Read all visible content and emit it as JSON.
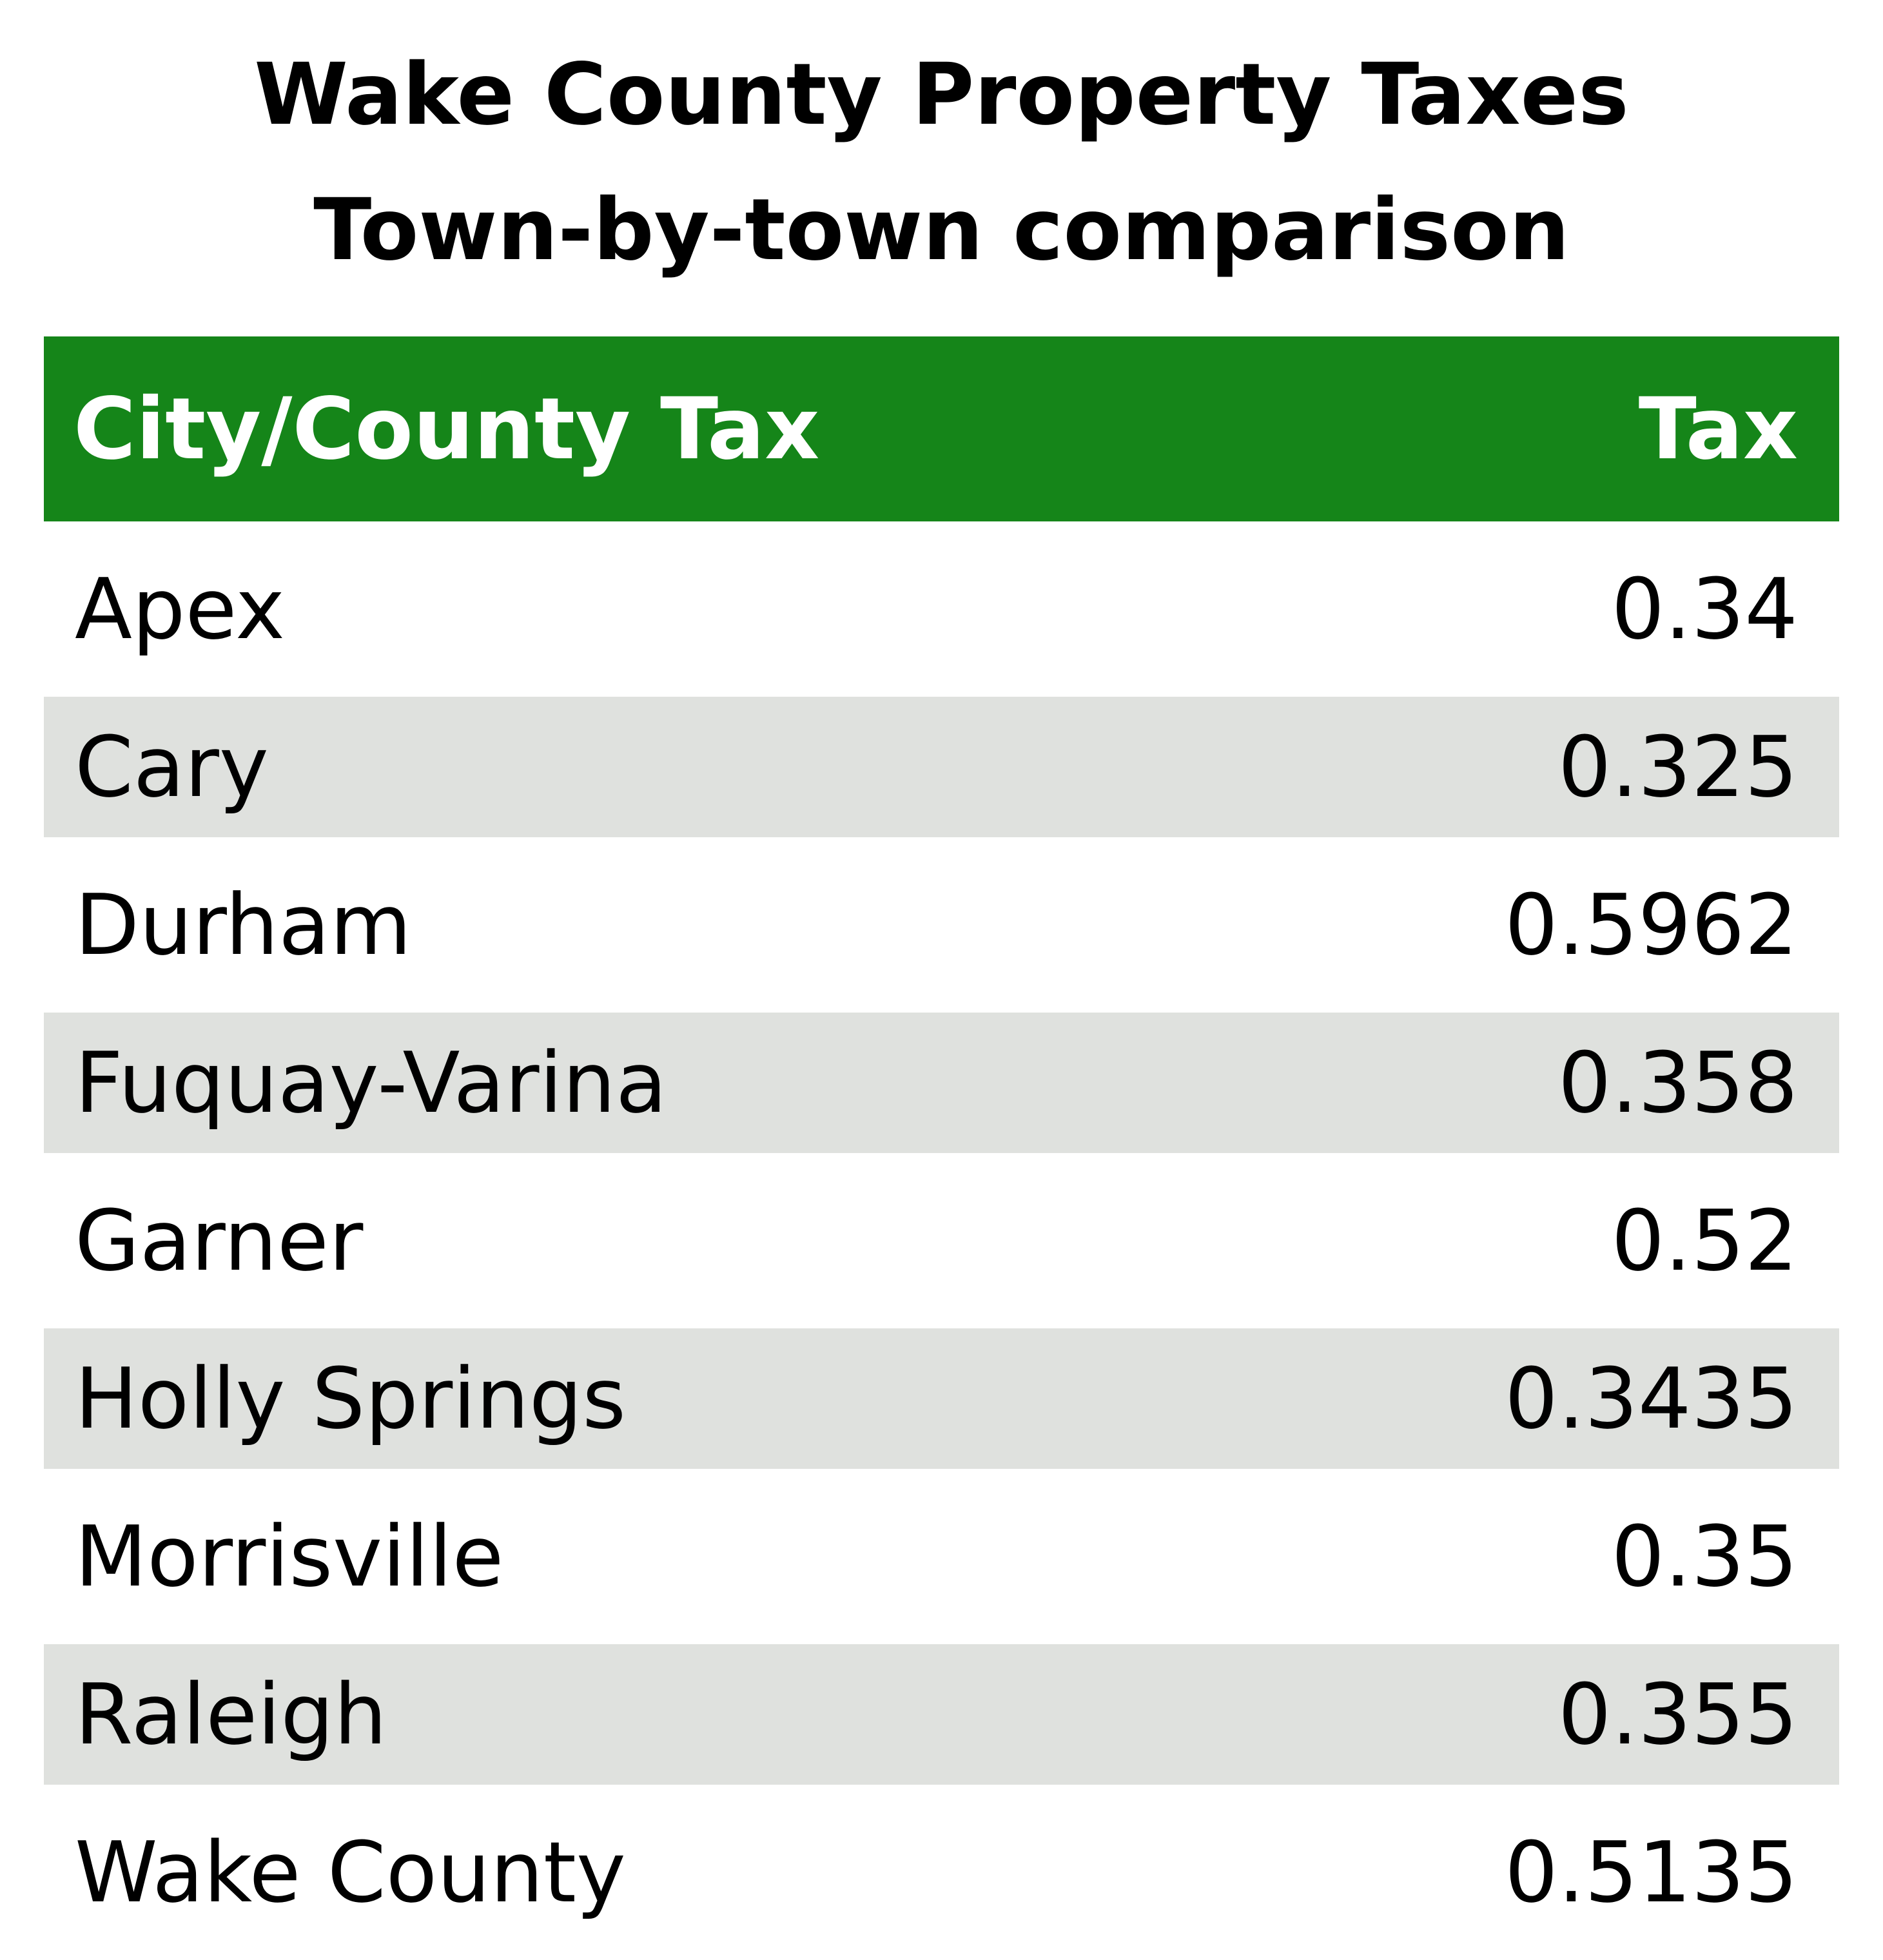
{
  "title": {
    "line1": "Wake County Property Taxes",
    "line2": "Town-by-town comparison"
  },
  "colors": {
    "header_bg": "#158519",
    "stripe_bg": "#dfe1de",
    "row_bg": "#ffffff",
    "text": "#000000",
    "header_text": "#ffffff"
  },
  "chart_data": {
    "type": "table",
    "columns": [
      "City/County Tax",
      "Tax"
    ],
    "rows": [
      [
        "Apex",
        "0.34"
      ],
      [
        "Cary",
        "0.325"
      ],
      [
        "Durham",
        "0.5962"
      ],
      [
        "Fuquay-Varina",
        "0.358"
      ],
      [
        "Garner",
        "0.52"
      ],
      [
        "Holly Springs",
        "0.3435"
      ],
      [
        "Morrisville",
        "0.35"
      ],
      [
        "Raleigh",
        "0.355"
      ],
      [
        "Wake County",
        "0.5135"
      ]
    ]
  }
}
